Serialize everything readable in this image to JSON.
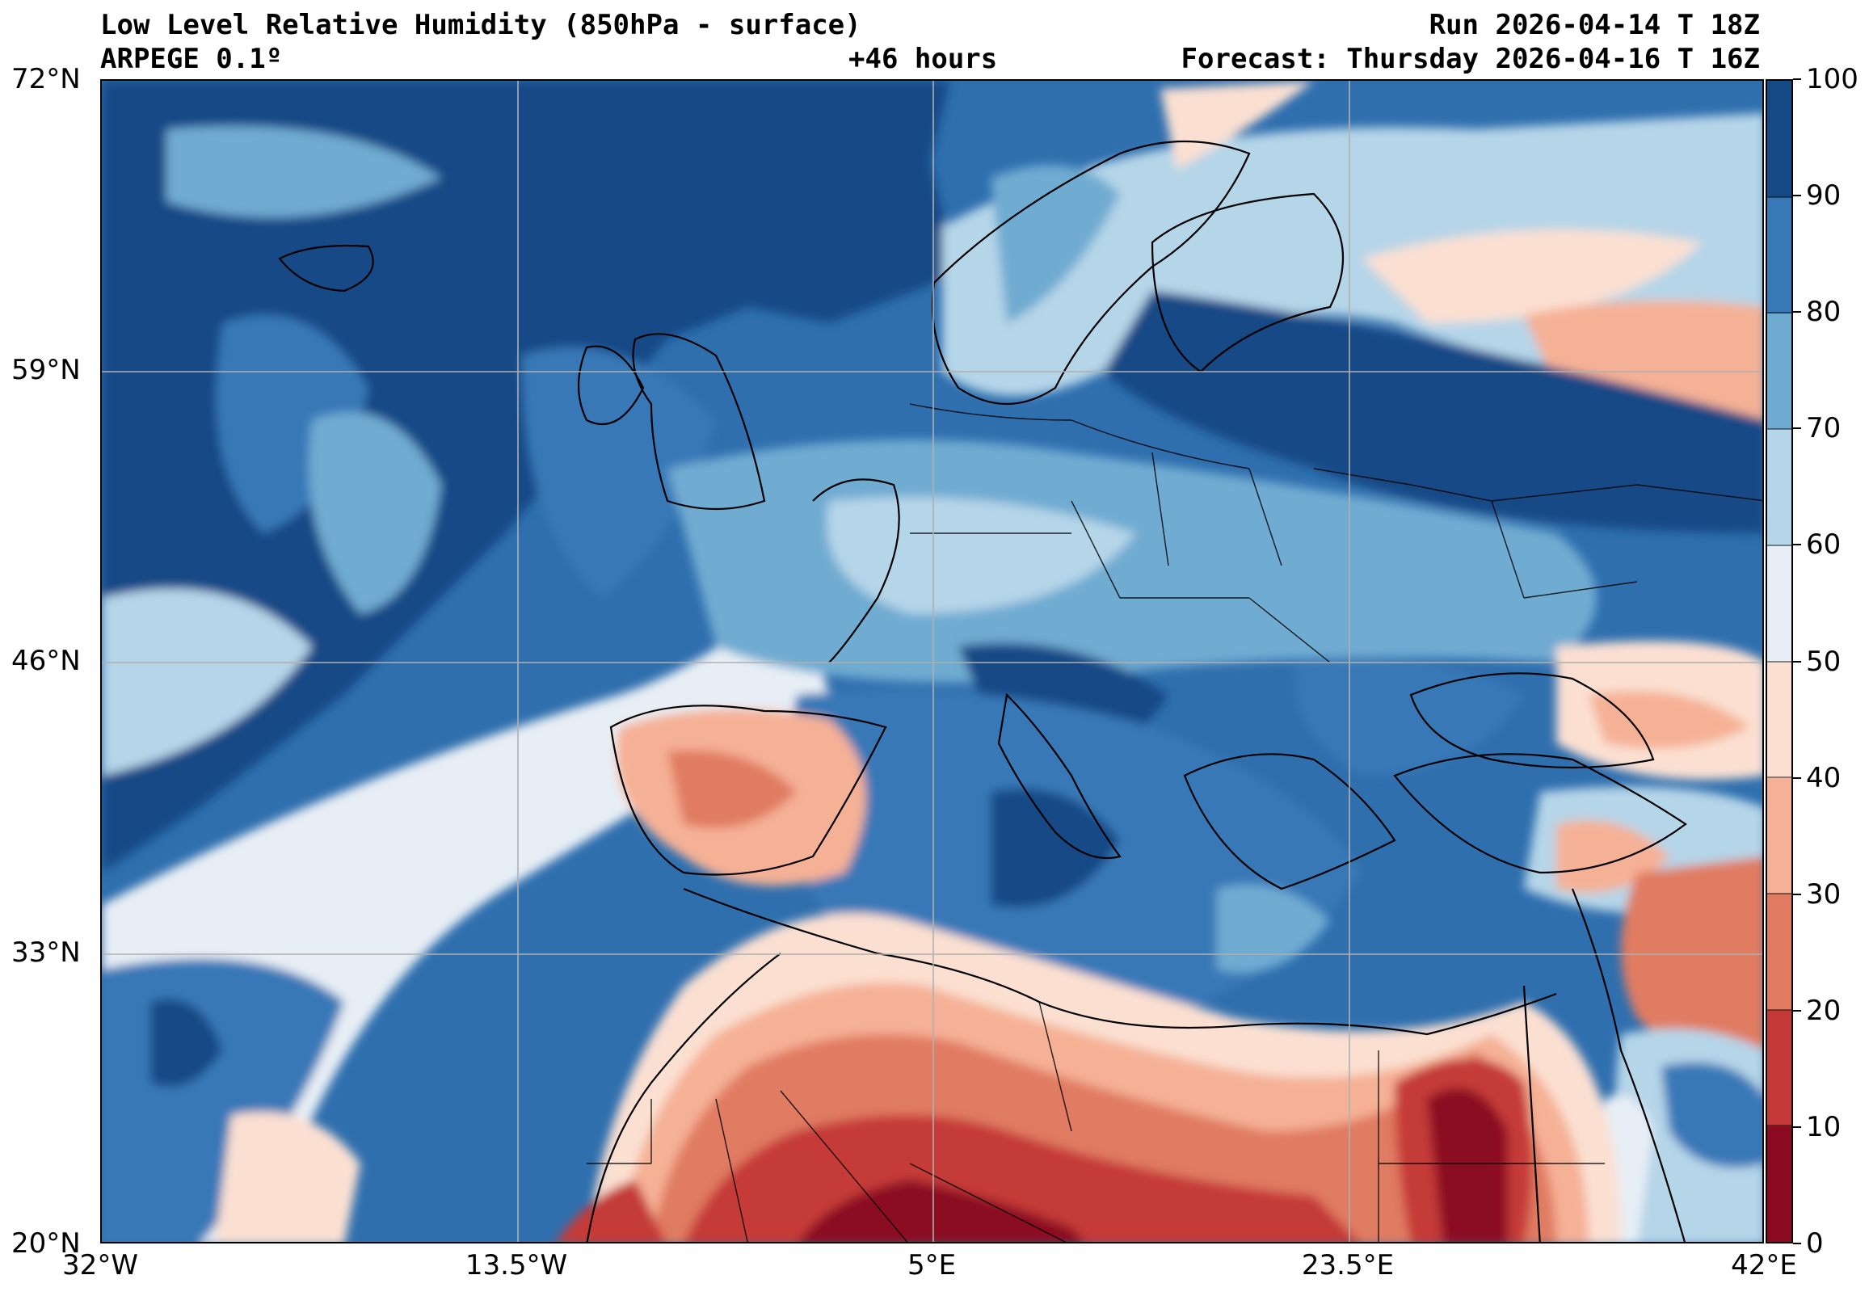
{
  "header": {
    "title": "Low Level Relative Humidity (850hPa - surface)",
    "run": "Run 2026-04-14 T 18Z",
    "model": "ARPEGE 0.1º",
    "lead": "+46 hours",
    "forecast": "Forecast: Thursday 2026-04-16 T 16Z"
  },
  "axes": {
    "lat_labels": [
      "72°N",
      "59°N",
      "46°N",
      "33°N",
      "20°N"
    ],
    "lon_labels": [
      "32°W",
      "13.5°W",
      "5°E",
      "23.5°E",
      "42°E"
    ],
    "grid": true
  },
  "colorbar": {
    "labels": [
      "100",
      "90",
      "80",
      "70",
      "60",
      "50",
      "40",
      "30",
      "20",
      "10",
      "0"
    ],
    "levels": [
      0,
      10,
      20,
      30,
      40,
      50,
      60,
      70,
      80,
      90,
      100
    ],
    "colors": [
      "#8b0a22",
      "#c53a38",
      "#e07b62",
      "#f5b195",
      "#fbe0d2",
      "#e7eef5",
      "#b5d5e8",
      "#6fabd1",
      "#3778b7",
      "#144a86"
    ]
  },
  "palette": {
    "ocean_base": "#2f6fae",
    "coastline": "#000000",
    "gridline": "#b0b0b0"
  }
}
